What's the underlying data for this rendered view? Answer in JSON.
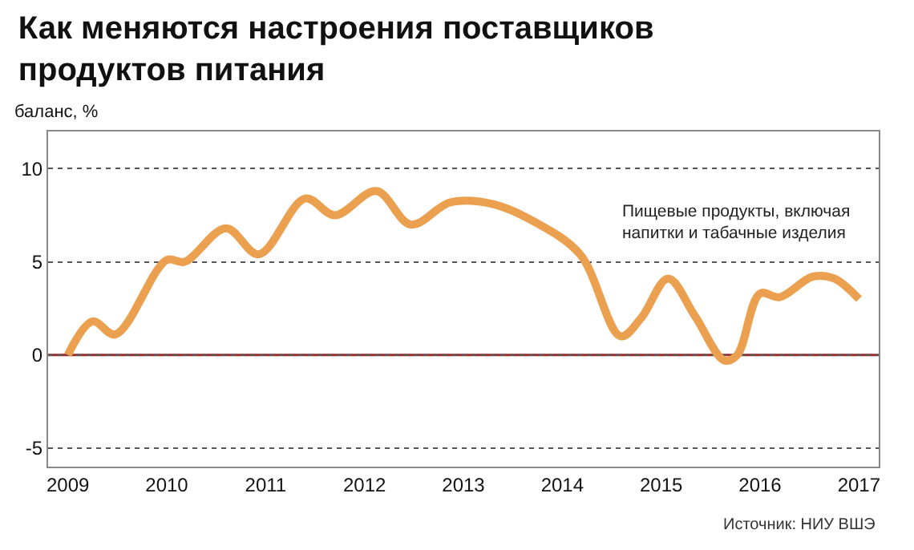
{
  "chart_data": {
    "type": "line",
    "title": "Как меняются настроения поставщиков продуктов питания",
    "ylabel": "баланс, %",
    "x": [
      2009.0,
      2009.25,
      2009.48,
      2010.0,
      2010.18,
      2010.6,
      2010.93,
      2011.4,
      2011.7,
      2012.12,
      2012.47,
      2012.87,
      2013.3,
      2013.7,
      2014.18,
      2014.59,
      2014.8,
      2015.07,
      2015.34,
      2015.64,
      2015.77,
      2016.0,
      2016.2,
      2016.53,
      2016.75,
      2017.0
    ],
    "series": [
      {
        "name": "Пищевые продукты, включая напитки и табачные изделия",
        "color": "#eba050",
        "values": [
          0,
          1.8,
          1.1,
          5.1,
          5.0,
          6.8,
          5.4,
          8.4,
          7.5,
          8.8,
          7.0,
          8.2,
          8.1,
          7.2,
          5.4,
          1.0,
          2.0,
          4.1,
          2.1,
          -0.3,
          0,
          3.3,
          3.1,
          4.2,
          4.1,
          3.0
        ]
      }
    ],
    "xlim": [
      2008.8,
      2017.2
    ],
    "xticks": [
      2009,
      2010,
      2011,
      2012,
      2013,
      2014,
      2015,
      2016,
      2017
    ],
    "ylim": [
      -6,
      12
    ],
    "yticks": [
      -5,
      0,
      5,
      10
    ],
    "grid": "y",
    "line_style": "solid",
    "marker": "none",
    "ref_lines": [
      {
        "axis": "y",
        "value": 0,
        "color": "#9b2b2b"
      }
    ],
    "annotations": [
      "Источник: НИУ ВШЭ"
    ]
  }
}
